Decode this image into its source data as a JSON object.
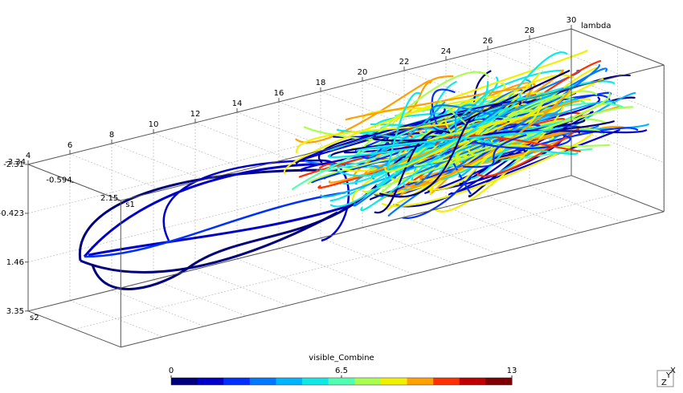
{
  "chart_data": {
    "type": "3d-lines",
    "lambda_axis": {
      "title": "lambda",
      "lim": [
        4,
        30
      ],
      "ticks": [
        4,
        6,
        8,
        10,
        12,
        14,
        16,
        18,
        20,
        22,
        24,
        26,
        28,
        30
      ]
    },
    "s1_axis": {
      "title": "s1",
      "lim": [
        -3.34,
        2.15
      ],
      "ticks": [
        -3.34,
        -0.594,
        2.15
      ]
    },
    "s2_axis": {
      "title": "s2",
      "lim": [
        -2.31,
        3.35
      ],
      "ticks": [
        -2.31,
        -0.423,
        1.46,
        3.35
      ]
    },
    "colorbar": {
      "title": "visible_Combine",
      "lim": [
        0,
        13
      ],
      "ticks": [
        0,
        6.5,
        13
      ],
      "colors": [
        "#00007f",
        "#0000c8",
        "#0030ff",
        "#0078ff",
        "#00b4ff",
        "#10e8e8",
        "#50ffb0",
        "#a8ff50",
        "#f0f000",
        "#ffa000",
        "#ff3000",
        "#c00000",
        "#7f0000"
      ]
    },
    "orientation": [
      "Z",
      "Y",
      "X"
    ]
  }
}
